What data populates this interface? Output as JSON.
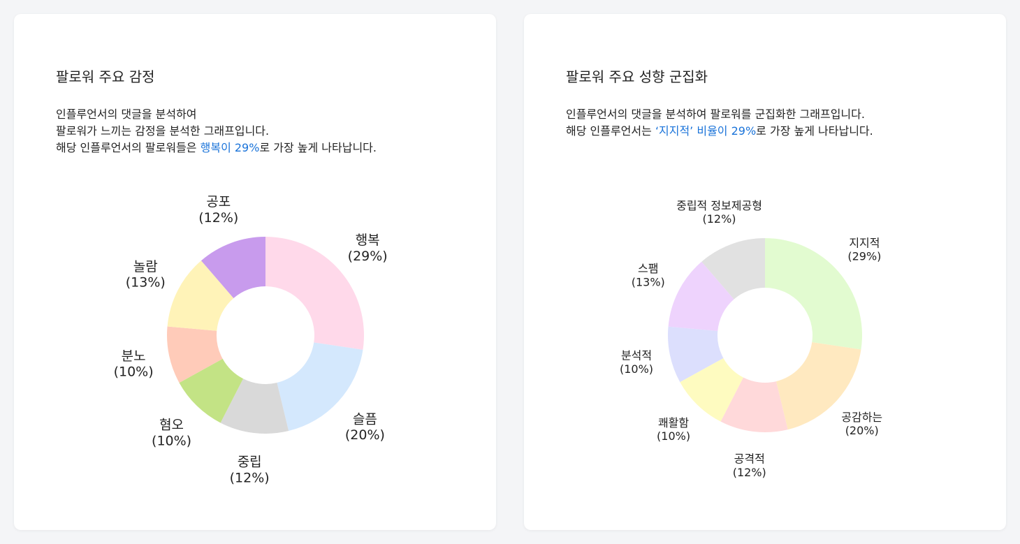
{
  "cards": [
    {
      "title": "팔로워 주요 감정",
      "description": [
        {
          "text": "인플루언서의 댓글을 분석하여"
        },
        {
          "text": "팔로워가 느끼는 감정을 분석한 그래프입니다."
        },
        {
          "prefix": "해당 인플루언서의 팔로워들은 ",
          "highlight": "행복이 29%",
          "suffix": "로 가장 높게 나타납니다."
        }
      ]
    },
    {
      "title": "팔로워 주요 성향 군집화",
      "description": [
        {
          "text": "인플루언서의 댓글을 분석하여 팔로워를 군집화한 그래프입니다."
        },
        {
          "prefix": "해당 인플루언서는 ",
          "highlight": "‘지지적’ 비율이 29%",
          "suffix": "로 가장 높게 나타납니다."
        }
      ]
    }
  ],
  "chart_data": [
    {
      "type": "pie",
      "donut": true,
      "categories": [
        "행복",
        "슬픔",
        "중립",
        "혐오",
        "분노",
        "놀람",
        "공포"
      ],
      "values": [
        29,
        20,
        12,
        10,
        10,
        13,
        12
      ],
      "value_labels": [
        "(29%)",
        "(20%)",
        "(12%)",
        "(10%)",
        "(10%)",
        "(13%)",
        "(12%)"
      ],
      "colors": [
        "#ffd9ea",
        "#d4e8fd",
        "#d9d9d9",
        "#c3e385",
        "#ffcbb9",
        "#fff3b8",
        "#c89bed"
      ]
    },
    {
      "type": "pie",
      "donut": true,
      "categories": [
        "지지적",
        "공감하는",
        "공격적",
        "쾌활함",
        "분석적",
        "스팸",
        "중립적 정보제공형"
      ],
      "values": [
        29,
        20,
        12,
        10,
        10,
        13,
        12
      ],
      "value_labels": [
        "(29%)",
        "(20%)",
        "(12%)",
        "(10%)",
        "(10%)",
        "(13%)",
        "(12%)"
      ],
      "colors": [
        "#e2fbd0",
        "#ffe9c0",
        "#ffd9da",
        "#fefbc0",
        "#dcdffd",
        "#eed3fd",
        "#e1e1e1"
      ]
    }
  ]
}
